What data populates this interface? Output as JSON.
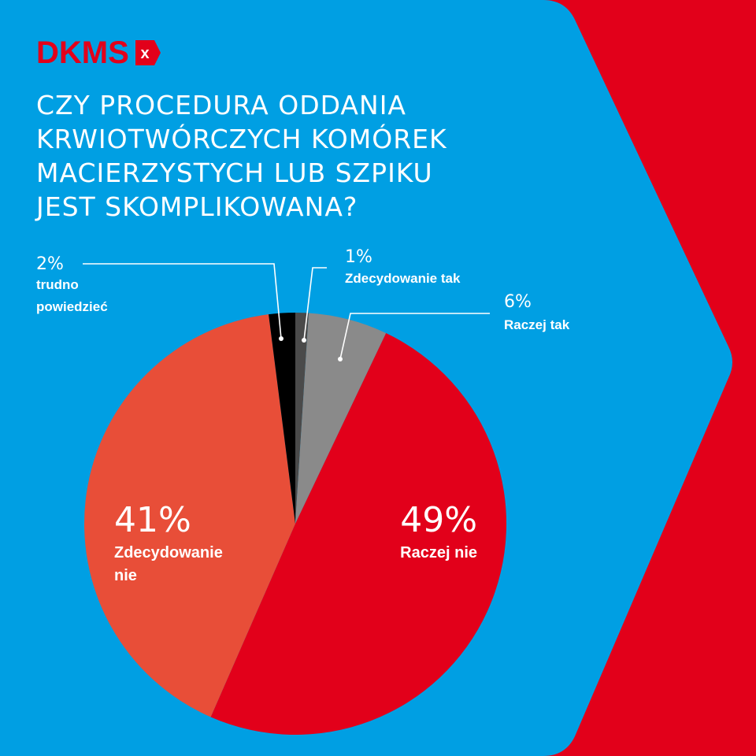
{
  "brand": {
    "name": "DKMS",
    "mark": "x",
    "color": "#e2001a"
  },
  "colors": {
    "background": "#009fe3",
    "accent": "#e2001a",
    "text": "#ffffff"
  },
  "title_lines": [
    "CZY PROCEDURA ODDANIA",
    "KRWIOTWÓRCZYCH KOMÓREK",
    "MACIERZYSTYCH LUB SZPIKU",
    "JEST SKOMPLIKOWANA?"
  ],
  "chart_data": {
    "type": "pie",
    "title": "CZY PROCEDURA ODDANIA KRWIOTWÓRCZYCH KOMÓREK MACIERZYSTYCH LUB SZPIKU JEST SKOMPLIKOWANA?",
    "start": "12 o'clock, clockwise",
    "slices": [
      {
        "label": "Zdecydowanie tak",
        "value": 1,
        "value_label": "1%",
        "color": "#4a4a4a"
      },
      {
        "label": "Raczej tak",
        "value": 6,
        "value_label": "6%",
        "color": "#8a8a8a"
      },
      {
        "label": "Raczej nie",
        "value": 49,
        "value_label": "49%",
        "color": "#e2001a"
      },
      {
        "label": "Zdecydowanie nie",
        "value": 41,
        "value_label": "41%",
        "color": "#e84e38"
      },
      {
        "label": "trudno powiedzieć",
        "value": 2,
        "value_label": "2%",
        "color": "#000000"
      }
    ]
  }
}
